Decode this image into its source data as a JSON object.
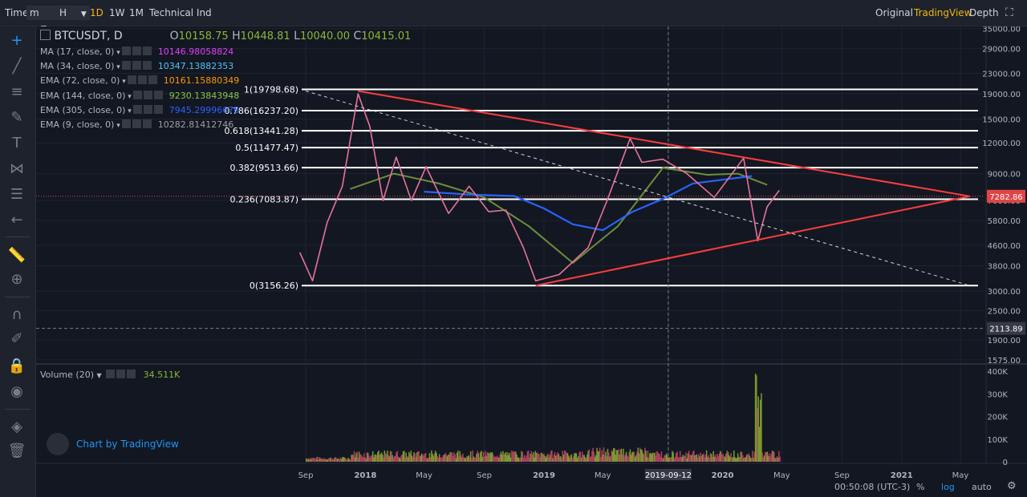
{
  "toolbar": {
    "time_label": "Time",
    "minute_label": "m",
    "hour_label": "H",
    "intervals": [
      "1D",
      "1W",
      "1M"
    ],
    "active_interval": "1D",
    "indicators_label": "Technical Ind",
    "view_modes": [
      "Original",
      "TradingView",
      "Depth"
    ],
    "active_view": "TradingView"
  },
  "legend": {
    "symbol": "BTCUSDT, D",
    "open_label": "O",
    "open": "10158.75",
    "high_label": "H",
    "high": "10448.81",
    "low_label": "L",
    "low": "10040.00",
    "close_label": "C",
    "close": "10415.01",
    "indicators": [
      {
        "name": "MA (17, close, 0)",
        "value": "10146.98058824",
        "color": "#e040fb"
      },
      {
        "name": "MA (34, close, 0)",
        "value": "10347.13882353",
        "color": "#4fc3f7"
      },
      {
        "name": "EMA (72, close, 0)",
        "value": "10161.15880349",
        "color": "#ff9800"
      },
      {
        "name": "EMA (144, close, 0)",
        "value": "9230.13843948",
        "color": "#8bc34a"
      },
      {
        "name": "EMA (305, close, 0)",
        "value": "7945.29996676",
        "color": "#2962ff"
      },
      {
        "name": "EMA (9, close, 0)",
        "value": "10282.81412746",
        "color": "#9e9e9e"
      }
    ],
    "volume_name": "Volume (20)",
    "volume_value": "34.511K"
  },
  "watermark": "Chart by TradingView",
  "status": {
    "clock": "00:50:08 (UTC-3)",
    "percent": "%",
    "log": "log",
    "auto": "auto"
  },
  "colors": {
    "background": "#131722",
    "accent": "#f0b90b",
    "trend": "#ff3d3d",
    "fib": "#ffffff",
    "price_badge": "#e04545"
  },
  "chart_data": {
    "type": "line",
    "scale": "log",
    "ylim": [
      1575,
      35000
    ],
    "price_ticks": [
      35000,
      29000,
      23000,
      19000,
      15000,
      12000,
      9000,
      7000,
      5800,
      4600,
      3800,
      3000,
      2500,
      1900,
      1575
    ],
    "price_tick_labels": [
      "35000.00",
      "29000.00",
      "23000.00",
      "19000.00",
      "15000.00",
      "12000.00",
      "9000.00",
      "7000.00",
      "5800.00",
      "4600.00",
      "3800.00",
      "3000.00",
      "2500.00",
      "1900.00",
      "1575.00"
    ],
    "x_ticks": [
      "Sep",
      "2018",
      "May",
      "Sep",
      "2019",
      "May",
      "2019-09-12",
      "2020",
      "May",
      "Sep",
      "2021",
      "May"
    ],
    "x_ticks_dates": [
      "2017-09-01",
      "2018-01-01",
      "2018-05-01",
      "2018-09-01",
      "2019-01-01",
      "2019-05-01",
      "2019-09-12",
      "2020-01-01",
      "2020-05-01",
      "2020-09-01",
      "2021-01-01",
      "2021-05-01"
    ],
    "crosshair": {
      "date": "2019-09-12",
      "price": "2113.89"
    },
    "current_price": "7282.86",
    "fib_levels": [
      {
        "label": "1(19798.68)",
        "value": 19798.68
      },
      {
        "label": "0.786(16237.20)",
        "value": 16237.2
      },
      {
        "label": "0.618(13441.28)",
        "value": 13441.28
      },
      {
        "label": "0.5(11477.47)",
        "value": 11477.47
      },
      {
        "label": "0.382(9513.66)",
        "value": 9513.66
      },
      {
        "label": "0.236(7083.87)",
        "value": 7083.87
      },
      {
        "label": "0(3156.26)",
        "value": 3156.26
      }
    ],
    "series": [
      {
        "name": "BTCUSDT",
        "x": [
          "2017-08-20",
          "2017-09-15",
          "2017-10-15",
          "2017-11-15",
          "2017-12-17",
          "2018-01-10",
          "2018-02-06",
          "2018-03-05",
          "2018-04-05",
          "2018-05-05",
          "2018-06-20",
          "2018-08-01",
          "2018-09-10",
          "2018-10-15",
          "2018-11-20",
          "2018-12-15",
          "2019-02-01",
          "2019-04-01",
          "2019-05-10",
          "2019-06-26",
          "2019-07-20",
          "2019-09-01",
          "2019-10-20",
          "2019-12-15",
          "2020-02-13",
          "2020-03-13",
          "2020-04-01",
          "2020-04-26"
        ],
        "values": [
          4300,
          3300,
          5700,
          8000,
          19000,
          14000,
          7000,
          10500,
          7000,
          9600,
          6200,
          8000,
          6300,
          6400,
          4500,
          3300,
          3500,
          4500,
          7000,
          12500,
          10000,
          10300,
          9000,
          7200,
          10400,
          4800,
          6600,
          7700
        ]
      },
      {
        "name": "EMA (305, close, 0)",
        "x": [
          "2018-05-01",
          "2018-08-01",
          "2018-11-01",
          "2019-01-01",
          "2019-03-01",
          "2019-05-01",
          "2019-07-01",
          "2019-09-01",
          "2019-11-01",
          "2020-01-01",
          "2020-03-01"
        ],
        "values": [
          7600,
          7400,
          7300,
          6500,
          5600,
          5300,
          6300,
          7100,
          8200,
          8500,
          8800
        ]
      },
      {
        "name": "EMA (144, close, 0)",
        "x": [
          "2017-12-01",
          "2018-03-01",
          "2018-06-01",
          "2018-09-01",
          "2018-12-01",
          "2019-03-01",
          "2019-06-01",
          "2019-09-01",
          "2019-12-01",
          "2020-02-01",
          "2020-04-01"
        ],
        "values": [
          7800,
          9000,
          8200,
          7200,
          5500,
          3900,
          5500,
          9500,
          8900,
          9000,
          8100
        ]
      }
    ],
    "trendlines": [
      {
        "name": "upper",
        "from": [
          "2017-12-17",
          19500
        ],
        "to": [
          "2021-05-20",
          7282.86
        ]
      },
      {
        "name": "lower",
        "from": [
          "2018-12-15",
          3156
        ],
        "to": [
          "2021-05-20",
          7282.86
        ]
      },
      {
        "name": "diag-dashed",
        "from": [
          "2017-09-01",
          19500
        ],
        "to": [
          "2021-05-20",
          3156
        ]
      }
    ],
    "volume": {
      "name": "Volume (20)",
      "ylim": [
        0,
        400000
      ],
      "tick_labels": [
        "400K",
        "300K",
        "200K",
        "100K",
        "0"
      ],
      "peak": 400000,
      "current": "34.511K"
    }
  }
}
